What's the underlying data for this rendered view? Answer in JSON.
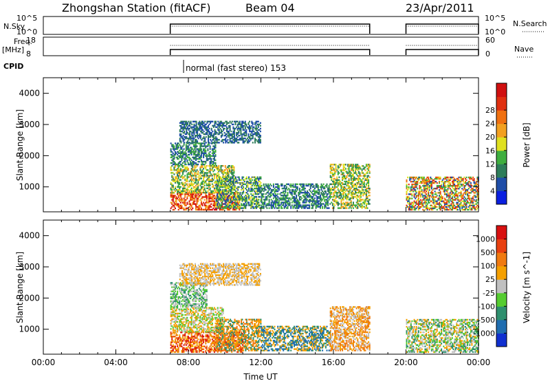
{
  "header": {
    "station": "Zhongshan Station (fitACF)",
    "beam": "Beam 04",
    "date": "23/Apr/2011"
  },
  "status_panels": {
    "nsky_label": "N.Sky",
    "nsky_ticks": [
      "10^5",
      "10^0"
    ],
    "nsearch_label": "N.Search",
    "nsearch_ticks": [
      "10^5",
      "10^0"
    ],
    "freq_label": "Freq.",
    "freq_unit": "[MHz]",
    "freq_ticks": [
      "18",
      "8"
    ],
    "nave_label": "Nave",
    "nave_ticks": [
      "60",
      "0"
    ],
    "cpid_label": "CPID",
    "cpid_text": "normal (fast stereo) 153"
  },
  "chart_data": [
    {
      "type": "heatmap",
      "title": "",
      "xlabel": "",
      "ylabel": "Slant Range [km]",
      "ylim": [
        200,
        4500
      ],
      "yticks": [
        1000,
        2000,
        3000,
        4000
      ],
      "xlim": [
        0,
        24
      ],
      "colorbar": {
        "label": "Power [dB]",
        "ticks": [
          "4",
          "8",
          "12",
          "16",
          "20",
          "24",
          "28"
        ],
        "colors": [
          "#0a1fe0",
          "#1f4ea8",
          "#2e7d5a",
          "#3fae3f",
          "#dfe020",
          "#f2a020",
          "#f07010",
          "#e03010",
          "#d01010"
        ]
      },
      "active_intervals_ut": [
        [
          7.0,
          18.0
        ],
        [
          20.0,
          24.0
        ]
      ]
    },
    {
      "type": "heatmap",
      "title": "",
      "xlabel": "Time UT",
      "ylabel": "Slant Range [km]",
      "ylim": [
        200,
        4500
      ],
      "yticks": [
        1000,
        2000,
        3000,
        4000
      ],
      "xlim": [
        0,
        24
      ],
      "xticks": [
        "00:00",
        "04:00",
        "08:00",
        "12:00",
        "16:00",
        "20:00",
        "00:00"
      ],
      "colorbar": {
        "label": "Velocity [m s^-1]",
        "ticks": [
          "1000",
          "500",
          "100",
          "25",
          "-25",
          "-100",
          "-500",
          "-1000"
        ],
        "colors": [
          "#1030d0",
          "#1f6db0",
          "#2e8f6e",
          "#55cc30",
          "#c0c0c0",
          "#f5a000",
          "#f07a10",
          "#e84010",
          "#d81010"
        ]
      },
      "active_intervals_ut": [
        [
          7.0,
          18.0
        ],
        [
          20.0,
          24.0
        ]
      ]
    }
  ]
}
